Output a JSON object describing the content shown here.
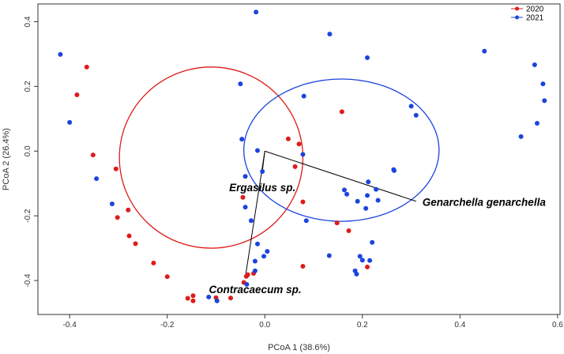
{
  "chart_data": {
    "type": "scatter",
    "title": "",
    "xlabel": "PCoA 1 (38.6%)",
    "ylabel": "PCoA 2 (26.4%)",
    "xlim": [
      -0.465,
      0.605
    ],
    "ylim": [
      -0.505,
      0.455
    ],
    "x_ticks": [
      -0.4,
      -0.2,
      0.0,
      0.2,
      0.4,
      0.6
    ],
    "x_tick_labels": [
      "-0.4",
      "-0.2",
      "0.0",
      "0.2",
      "0.4",
      "0.6"
    ],
    "y_ticks": [
      -0.4,
      -0.2,
      0.0,
      0.2,
      0.4
    ],
    "y_tick_labels": [
      "-0.4",
      "-0.2",
      "0.0",
      "0.2",
      "0.4"
    ],
    "legend": {
      "position": "top-right",
      "entries": [
        {
          "label": "2020",
          "color": "#dd1c1c"
        },
        {
          "label": "2021",
          "color": "#1c44dd"
        }
      ]
    },
    "series": [
      {
        "name": "2020",
        "color": "#dd1c1c",
        "points": [
          [
            -0.365,
            0.26
          ],
          [
            -0.385,
            0.174
          ],
          [
            -0.352,
            -0.012
          ],
          [
            -0.305,
            -0.055
          ],
          [
            -0.302,
            -0.205
          ],
          [
            -0.28,
            -0.182
          ],
          [
            -0.278,
            -0.262
          ],
          [
            -0.265,
            -0.286
          ],
          [
            -0.228,
            -0.346
          ],
          [
            -0.2,
            -0.388
          ],
          [
            -0.158,
            -0.455
          ],
          [
            -0.147,
            -0.447
          ],
          [
            -0.147,
            -0.463
          ],
          [
            -0.1,
            -0.453
          ],
          [
            -0.07,
            -0.454
          ],
          [
            -0.043,
            -0.406
          ],
          [
            -0.038,
            -0.387
          ],
          [
            -0.023,
            -0.378
          ],
          [
            -0.045,
            -0.143
          ],
          [
            -0.035,
            -0.382
          ],
          [
            0.048,
            0.038
          ],
          [
            0.07,
            0.022
          ],
          [
            0.062,
            -0.048
          ],
          [
            0.078,
            -0.157
          ],
          [
            0.078,
            -0.356
          ],
          [
            0.148,
            -0.222
          ],
          [
            0.172,
            -0.246
          ],
          [
            0.158,
            0.122
          ],
          [
            0.21,
            -0.358
          ]
        ]
      },
      {
        "name": "2021",
        "color": "#1c44dd",
        "points": [
          [
            -0.419,
            0.299
          ],
          [
            -0.4,
            0.089
          ],
          [
            -0.345,
            -0.085
          ],
          [
            -0.313,
            -0.163
          ],
          [
            -0.115,
            -0.451
          ],
          [
            -0.098,
            -0.463
          ],
          [
            -0.05,
            0.208
          ],
          [
            -0.047,
            0.037
          ],
          [
            -0.04,
            -0.078
          ],
          [
            -0.04,
            -0.173
          ],
          [
            -0.037,
            -0.412
          ],
          [
            -0.028,
            -0.215
          ],
          [
            -0.02,
            -0.37
          ],
          [
            -0.02,
            -0.34
          ],
          [
            -0.015,
            -0.287
          ],
          [
            -0.018,
            0.43
          ],
          [
            -0.015,
            0.002
          ],
          [
            -0.005,
            -0.063
          ],
          [
            0.005,
            -0.31
          ],
          [
            -0.002,
            -0.325
          ],
          [
            0.08,
            0.17
          ],
          [
            0.078,
            -0.01
          ],
          [
            0.085,
            -0.215
          ],
          [
            0.133,
            0.362
          ],
          [
            0.132,
            -0.323
          ],
          [
            0.163,
            -0.12
          ],
          [
            0.168,
            -0.133
          ],
          [
            0.185,
            -0.37
          ],
          [
            0.188,
            -0.38
          ],
          [
            0.19,
            -0.155
          ],
          [
            0.195,
            -0.325
          ],
          [
            0.2,
            -0.337
          ],
          [
            0.21,
            0.289
          ],
          [
            0.207,
            -0.177
          ],
          [
            0.21,
            -0.137
          ],
          [
            0.212,
            -0.095
          ],
          [
            0.215,
            -0.338
          ],
          [
            0.22,
            -0.282
          ],
          [
            0.228,
            -0.118
          ],
          [
            0.232,
            -0.152
          ],
          [
            0.265,
            -0.06
          ],
          [
            0.264,
            -0.057
          ],
          [
            0.3,
            0.139
          ],
          [
            0.31,
            0.111
          ],
          [
            0.45,
            0.309
          ],
          [
            0.525,
            0.045
          ],
          [
            0.553,
            0.267
          ],
          [
            0.558,
            0.086
          ],
          [
            0.57,
            0.208
          ],
          [
            0.573,
            0.156
          ]
        ]
      }
    ],
    "ellipses": [
      {
        "name": "2020",
        "color": "#dd1c1c",
        "center": [
          -0.11,
          -0.02
        ],
        "radius_x": 0.188,
        "radius_y": 0.28
      },
      {
        "name": "2021",
        "color": "#1c44dd",
        "center": [
          0.157,
          0.003
        ],
        "radius_x": 0.2,
        "radius_y": 0.22
      }
    ],
    "vectors": [
      {
        "label": "Ergasilus sp.",
        "x": -0.005,
        "y": -0.06
      },
      {
        "label": "Genarchella genarchella",
        "x": 0.31,
        "y": -0.155
      },
      {
        "label": "Contracaecum sp.",
        "x": -0.04,
        "y": -0.39
      }
    ]
  }
}
